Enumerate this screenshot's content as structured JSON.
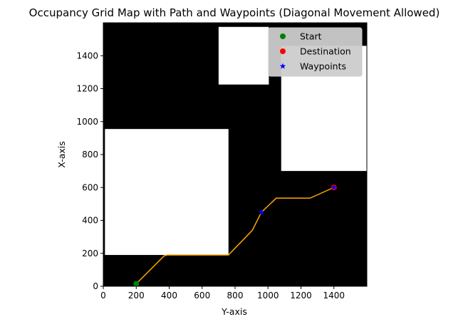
{
  "chart_data": {
    "type": "scatter",
    "title": "Occupancy Grid Map with Path and Waypoints (Diagonal Movement Allowed)",
    "xlabel": "Y-axis",
    "ylabel": "X-axis",
    "xlim": [
      0,
      1600
    ],
    "ylim": [
      0,
      1600
    ],
    "xticks": [
      0,
      200,
      400,
      600,
      800,
      1000,
      1200,
      1400
    ],
    "yticks": [
      0,
      200,
      400,
      600,
      800,
      1000,
      1200,
      1400
    ],
    "background_color": "#000000",
    "free_space_color": "#ffffff",
    "free_regions": [
      {
        "x0": 10,
        "x1": 760,
        "y0": 190,
        "y1": 955
      },
      {
        "x0": 700,
        "x1": 1005,
        "y0": 1225,
        "y1": 1575
      },
      {
        "x0": 1080,
        "x1": 1600,
        "y0": 700,
        "y1": 1460
      }
    ],
    "path": {
      "color": "#ffa500",
      "points": [
        [
          200,
          15
        ],
        [
          370,
          185
        ],
        [
          390,
          190
        ],
        [
          760,
          190
        ],
        [
          905,
          340
        ],
        [
          960,
          450
        ],
        [
          1050,
          535
        ],
        [
          1255,
          535
        ],
        [
          1400,
          600
        ]
      ]
    },
    "series": [
      {
        "name": "Start",
        "marker": "circle",
        "color": "#008000",
        "points": [
          [
            200,
            15
          ]
        ]
      },
      {
        "name": "Destination",
        "marker": "circle",
        "color": "#ff0000",
        "points": [
          [
            1400,
            600
          ]
        ]
      },
      {
        "name": "Waypoints",
        "marker": "star",
        "color": "#0000ff",
        "points": [
          [
            960,
            450
          ],
          [
            1400,
            600
          ]
        ]
      }
    ],
    "legend_position": "top-right"
  }
}
